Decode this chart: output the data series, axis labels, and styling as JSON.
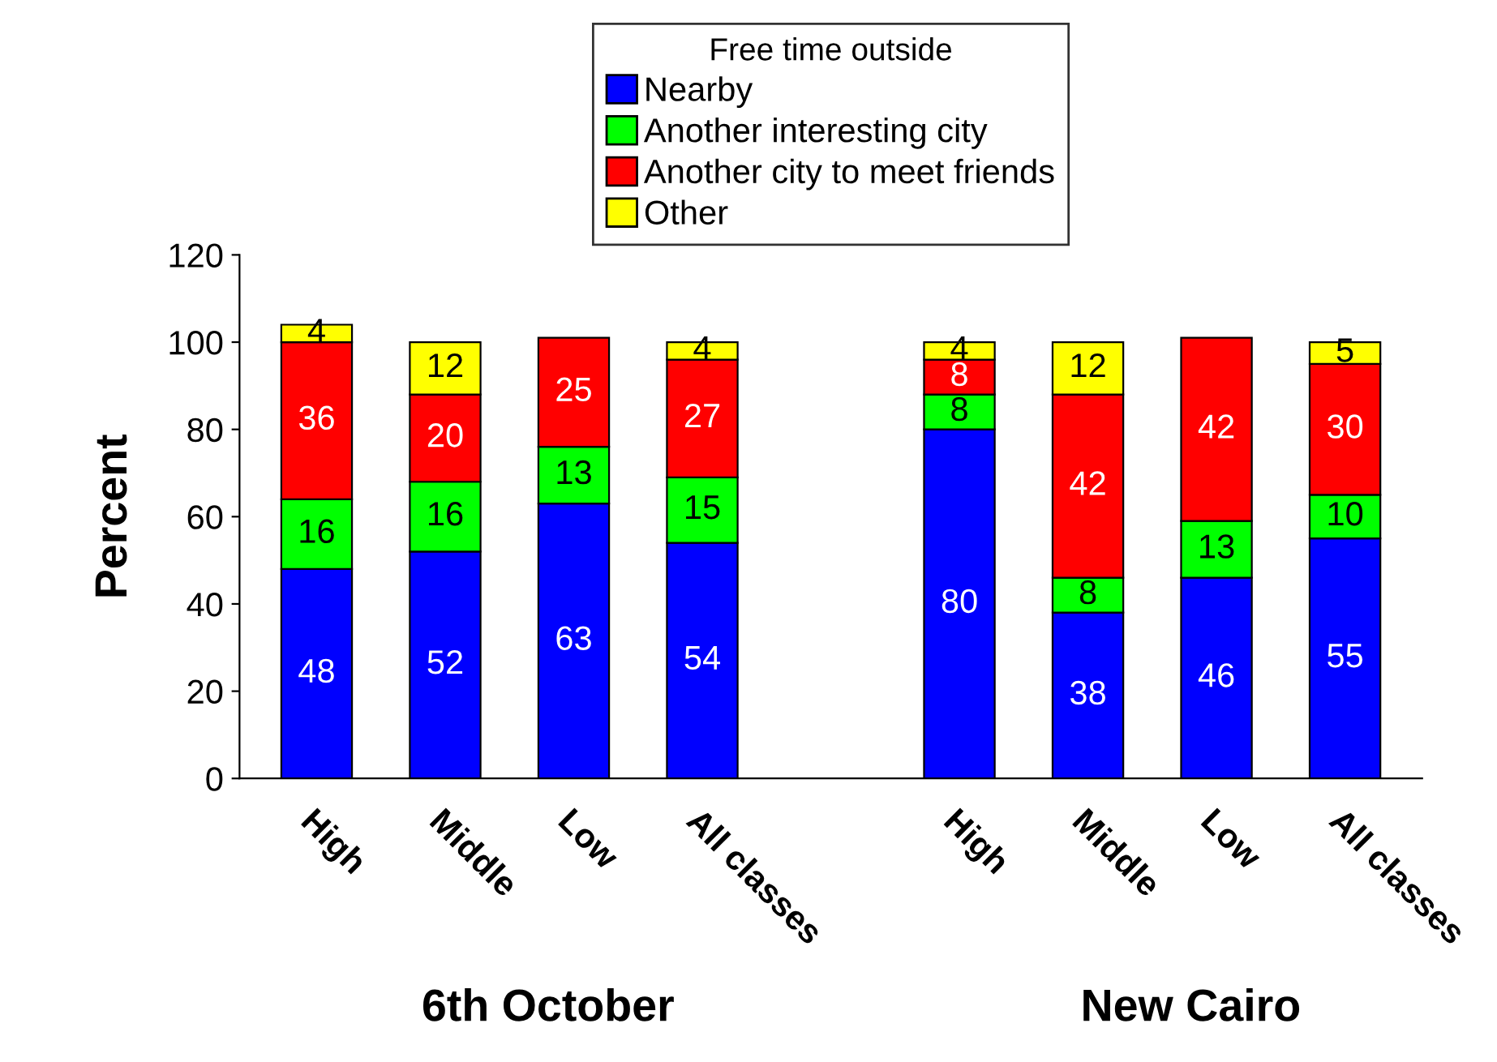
{
  "chart_data": {
    "type": "bar",
    "stacked": true,
    "ylabel": "Percent",
    "legend_title": "Free time outside",
    "legend": "top",
    "categories": [
      "High",
      "Middle",
      "Low",
      "All classes",
      null,
      "High",
      "Middle",
      "Low",
      "All classes"
    ],
    "series": [
      {
        "name": "Nearby",
        "color": "#0000ff",
        "values": [
          48,
          52,
          63,
          54,
          null,
          80,
          38,
          46,
          55
        ]
      },
      {
        "name": "Another interesting city",
        "color": "#00ff00",
        "values": [
          16,
          16,
          13,
          15,
          null,
          8,
          8,
          13,
          10
        ]
      },
      {
        "name": "Another city to meet friends",
        "color": "#ff0000",
        "values": [
          36,
          20,
          25,
          27,
          null,
          8,
          42,
          42,
          30
        ]
      },
      {
        "name": "Other",
        "color": "#ffff00",
        "values": [
          4,
          12,
          null,
          4,
          null,
          4,
          12,
          null,
          5
        ]
      }
    ],
    "ylim": [
      0,
      120
    ],
    "yticks": [
      0,
      20,
      40,
      60,
      80,
      100,
      120
    ],
    "grid": false,
    "data_labels": true,
    "annotations": [
      "6th October",
      "New Cairo"
    ]
  }
}
